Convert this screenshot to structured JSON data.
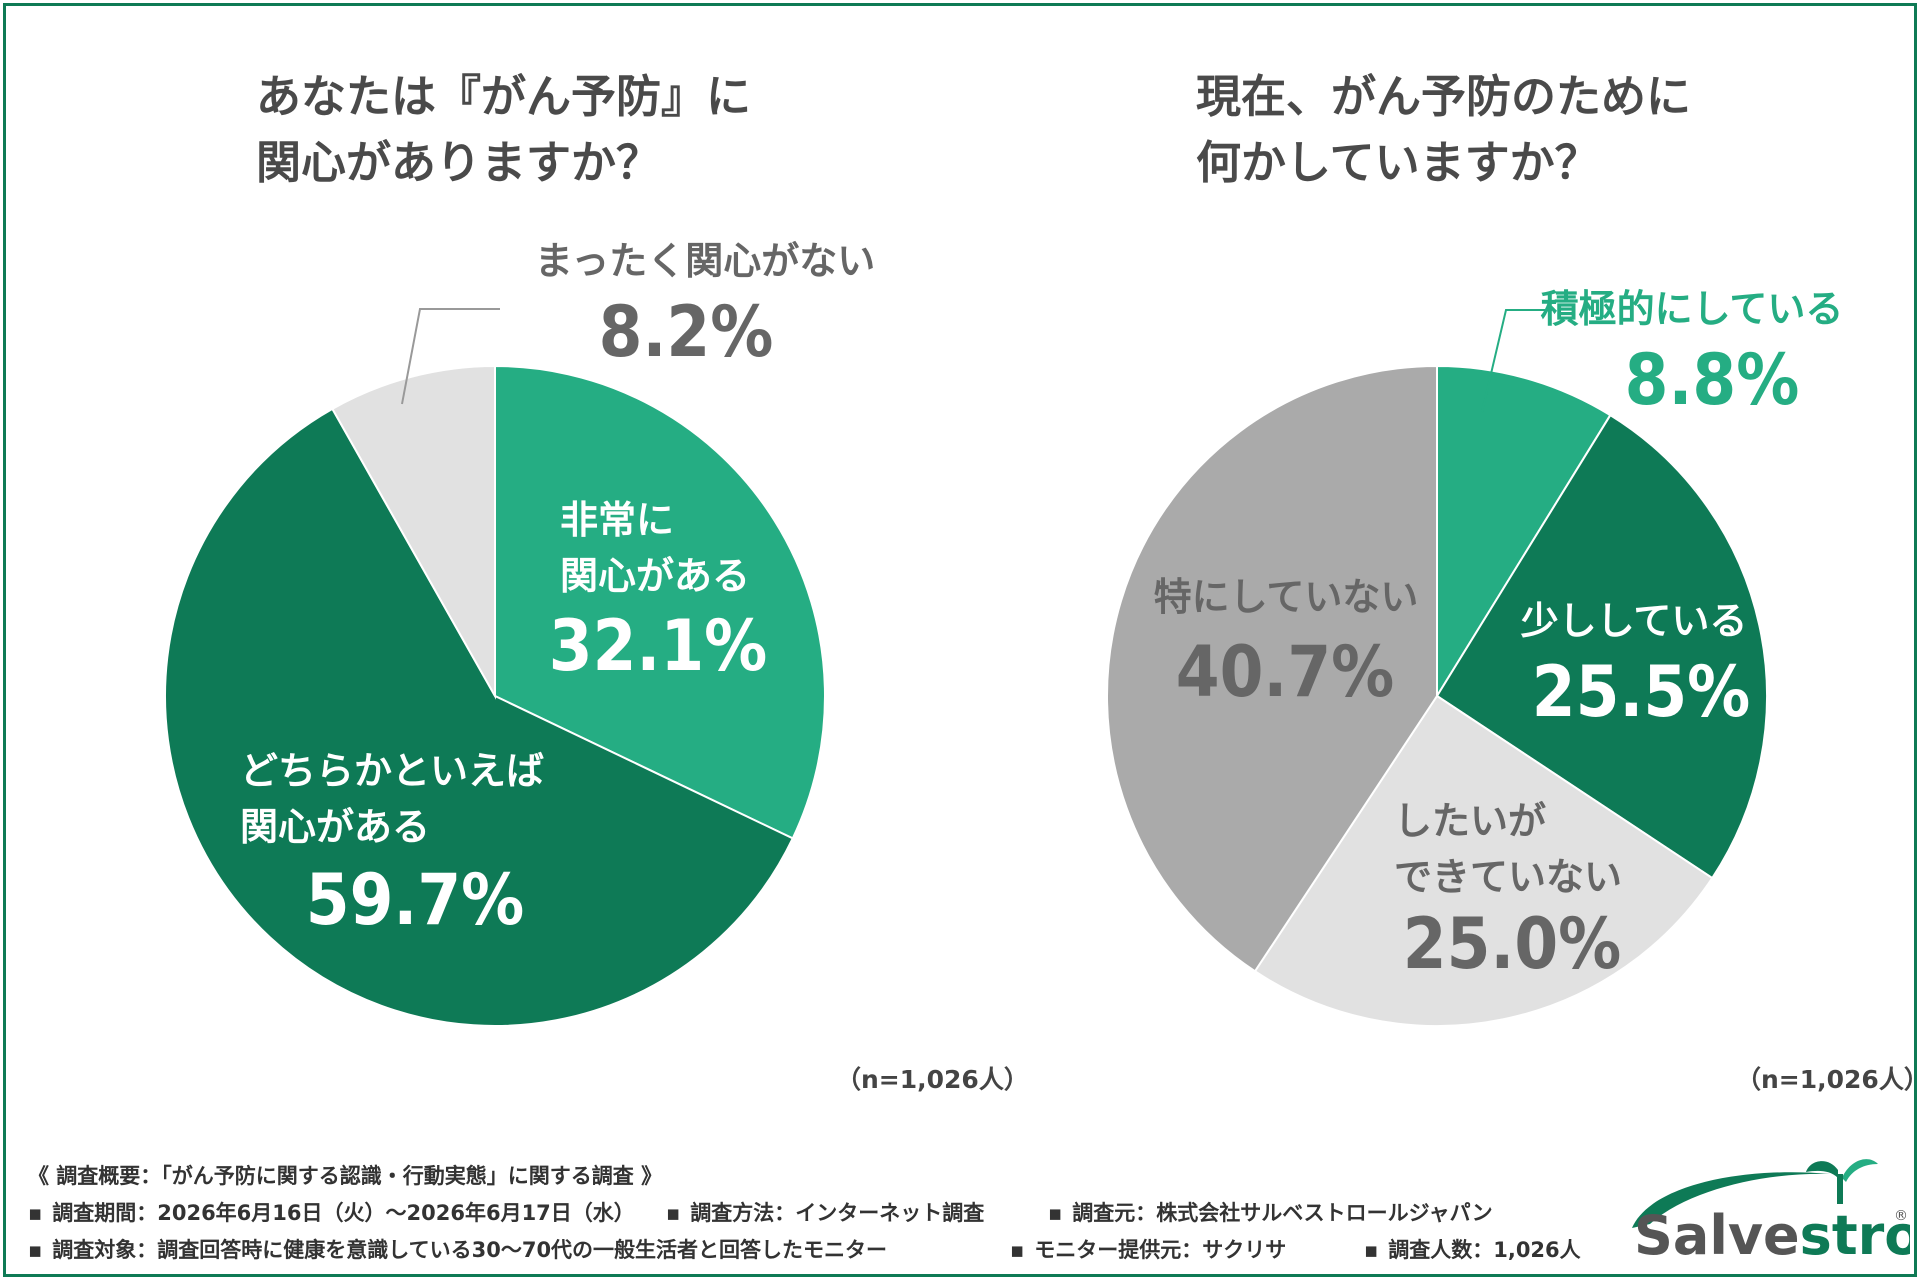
{
  "colors": {
    "green_light": "#25ad83",
    "green_dark": "#0e7a56",
    "gray_light": "#e1e1e1",
    "gray_mid": "#aaaaaa",
    "text_gray": "#666666",
    "frame": "#0f7a55"
  },
  "chart_data": [
    {
      "type": "pie",
      "title": [
        "あなたは『がん予防』に",
        "関心がありますか？"
      ],
      "note": "（n=1,026人）",
      "slices": [
        {
          "label": [
            "非常に",
            "関心がある"
          ],
          "value": 32.1,
          "value_label": "32.1%",
          "color": "#25ad83"
        },
        {
          "label": [
            "どちらかといえば",
            "関心がある"
          ],
          "value": 59.7,
          "value_label": "59.7%",
          "color": "#0e7a56"
        },
        {
          "label": [
            "まったく関心がない"
          ],
          "value": 8.2,
          "value_label": "8.2%",
          "color": "#e1e1e1"
        }
      ]
    },
    {
      "type": "pie",
      "title": [
        "現在、がん予防のために",
        "何かしていますか？"
      ],
      "note": "（n=1,026人）",
      "slices": [
        {
          "label": [
            "積極的にしている"
          ],
          "value": 8.8,
          "value_label": "8.8%",
          "color": "#25ad83"
        },
        {
          "label": [
            "少ししている"
          ],
          "value": 25.5,
          "value_label": "25.5%",
          "color": "#0e7a56"
        },
        {
          "label": [
            "したいが",
            "できていない"
          ],
          "value": 25.0,
          "value_label": "25.0%",
          "color": "#e1e1e1"
        },
        {
          "label": [
            "特にしていない"
          ],
          "value": 40.7,
          "value_label": "40.7%",
          "color": "#aaaaaa"
        }
      ]
    }
  ],
  "footer": {
    "heading": "《 調査概要：「がん予防に関する認識・行動実態」に関する調査 》",
    "rows": [
      [
        {
          "bullet": "▪",
          "text": "調査期間：2026年6月16日（火）〜2026年6月17日（水）"
        },
        {
          "bullet": "▪",
          "text": "調査方法：インターネット調査"
        },
        {
          "bullet": "▪",
          "text": "調査元：株式会社サルベストロールジャパン"
        }
      ],
      [
        {
          "bullet": "▪",
          "text": "調査対象：調査回答時に健康を意識している30〜70代の一般生活者と回答したモニター"
        },
        {
          "bullet": "▪",
          "text": "モニター提供元：サクリサ"
        },
        {
          "bullet": "▪",
          "text": "調査人数：1,026人"
        }
      ]
    ]
  },
  "logo": {
    "text_part1": "Salve",
    "text_part2": "strol",
    "mark": "®"
  }
}
